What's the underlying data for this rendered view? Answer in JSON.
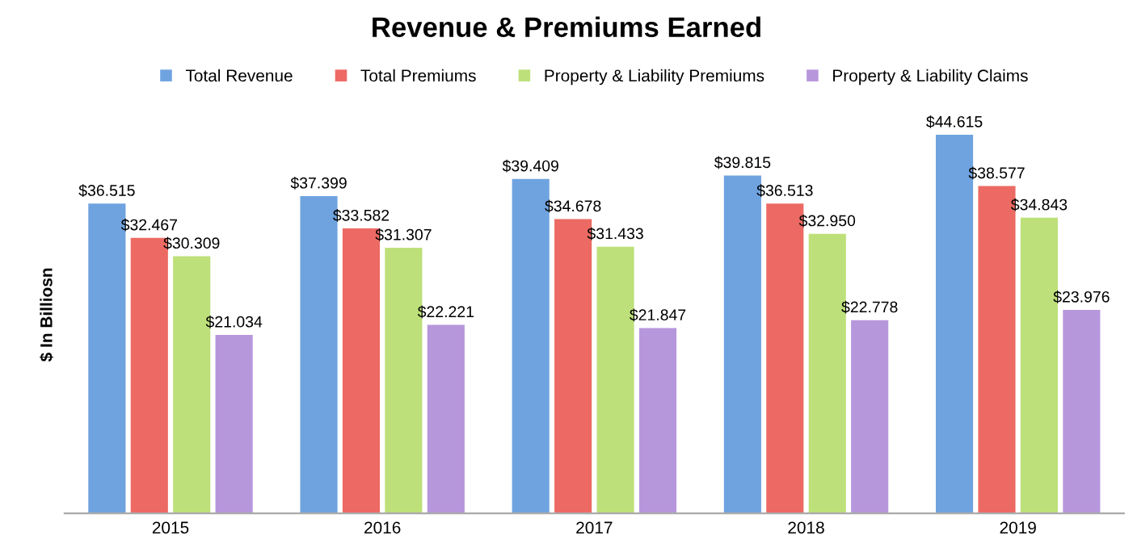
{
  "chart_data": {
    "type": "bar",
    "title": "Revenue & Premiums Earned",
    "ylabel": "$ In Billiosn",
    "categories": [
      "2015",
      "2016",
      "2017",
      "2018",
      "2019"
    ],
    "series": [
      {
        "name": "Total Revenue",
        "color": "#6fa3e0",
        "values": [
          36.515,
          37.399,
          39.409,
          39.815,
          44.615
        ],
        "value_labels": [
          "$36.515",
          "$37.399",
          "$39.409",
          "$39.815",
          "$44.615"
        ]
      },
      {
        "name": "Total Premiums",
        "color": "#ec6a63",
        "values": [
          32.467,
          33.582,
          34.678,
          36.513,
          38.577
        ],
        "value_labels": [
          "$32.467",
          "$33.582",
          "$34.678",
          "$36.513",
          "$38.577"
        ]
      },
      {
        "name": "Property & Liability Premiums",
        "color": "#bde07a",
        "values": [
          30.309,
          31.307,
          31.433,
          32.95,
          34.843
        ],
        "value_labels": [
          "$30.309",
          "$31.307",
          "$31.433",
          "$32.950",
          "$34.843"
        ]
      },
      {
        "name": "Property & Liability Claims",
        "color": "#b797dc",
        "values": [
          21.034,
          22.221,
          21.847,
          22.778,
          23.976
        ],
        "value_labels": [
          "$21.034",
          "$22.221",
          "$21.847",
          "$22.778",
          "$23.976"
        ]
      }
    ],
    "legend": "top",
    "tick_labels": "x"
  }
}
